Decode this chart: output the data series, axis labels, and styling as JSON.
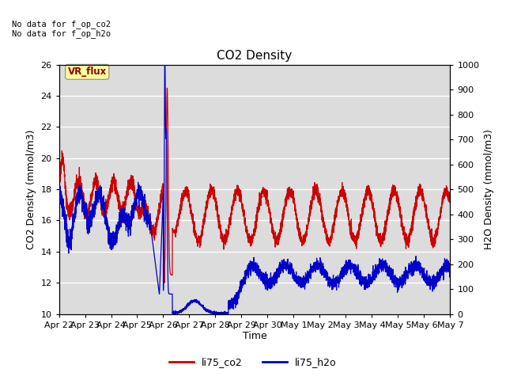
{
  "title": "CO2 Density",
  "xlabel": "Time",
  "ylabel_left": "CO2 Density (mmol/m3)",
  "ylabel_right": "H2O Density (mmol/m3)",
  "top_left_text": "No data for f_op_co2\nNo data for f_op_h2o",
  "annotation_text": "VR_flux",
  "annotation_color": "#8B0000",
  "annotation_bg": "#FFFFA0",
  "ylim_left": [
    10,
    26
  ],
  "ylim_right": [
    0,
    1000
  ],
  "yticks_left": [
    10,
    12,
    14,
    16,
    18,
    20,
    22,
    24,
    26
  ],
  "yticks_right": [
    0,
    100,
    200,
    300,
    400,
    500,
    600,
    700,
    800,
    900,
    1000
  ],
  "co2_color": "#CC0000",
  "h2o_color": "#0000CC",
  "legend_co2": "li75_co2",
  "legend_h2o": "li75_h2o",
  "bg_color": "#DCDCDC",
  "grid_color": "white",
  "xtick_labels": [
    "Apr 22",
    "Apr 23",
    "Apr 24",
    "Apr 25",
    "Apr 26",
    "Apr 27",
    "Apr 28",
    "Apr 29",
    "Apr 30",
    "May 1",
    "May 2",
    "May 3",
    "May 4",
    "May 5",
    "May 6",
    "May 7"
  ],
  "linewidth": 0.9
}
